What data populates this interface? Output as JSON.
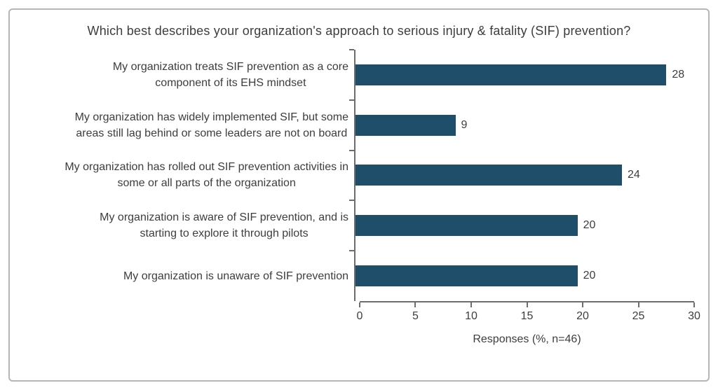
{
  "chart_data": {
    "type": "bar",
    "orientation": "horizontal",
    "title": "Which best describes your organization's approach to serious injury & fatality (SIF) prevention?",
    "categories": [
      "My organization treats SIF prevention as a core\ncomponent of its EHS mindset",
      "My organization has widely implemented SIF, but some\nareas still lag behind or some leaders are not on board",
      "My organization has rolled out SIF prevention activities in\nsome or all parts of the organization",
      "My organization is aware of SIF prevention, and is\nstarting to explore it through pilots",
      "My organization is unaware of SIF prevention"
    ],
    "values": [
      28,
      9,
      24,
      20,
      20
    ],
    "value_labels": [
      "28",
      "9",
      "24",
      "20",
      "20"
    ],
    "xlabel": "Responses (%, n=46)",
    "xlim": [
      0,
      30
    ],
    "xticks": [
      0,
      5,
      10,
      15,
      20,
      25,
      30
    ],
    "grid": false,
    "legend": "none",
    "colors": {
      "bar": "#1f4e6b",
      "axis": "#6d6d6d",
      "text": "#3d3d3d",
      "frame_border": "#b6b6b6",
      "background": "#ffffff"
    }
  }
}
